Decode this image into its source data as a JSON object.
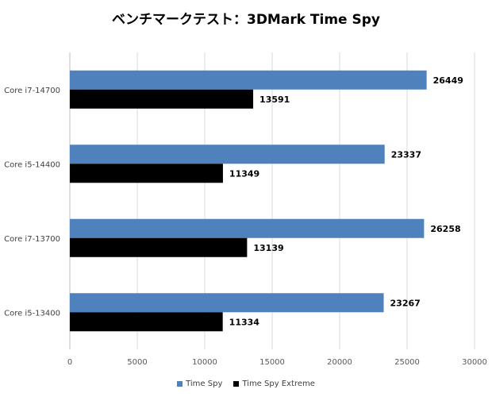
{
  "chart_data": {
    "type": "bar",
    "orientation": "horizontal",
    "title": "ベンチマークテスト：3DMark Time Spy",
    "categories": [
      "Core i7-14700",
      "Core i5-14400",
      "Core i7-13700",
      "Core i5-13400"
    ],
    "series": [
      {
        "name": "Time Spy",
        "color": "#4f81bd",
        "values": [
          26449,
          23337,
          26258,
          23267
        ]
      },
      {
        "name": "Time Spy Extreme",
        "color": "#000000",
        "values": [
          13591,
          11349,
          13139,
          11334
        ]
      }
    ],
    "xlim": [
      0,
      30000
    ],
    "xticks": [
      0,
      5000,
      10000,
      15000,
      20000,
      25000,
      30000
    ],
    "grid": true,
    "legend_position": "bottom"
  }
}
